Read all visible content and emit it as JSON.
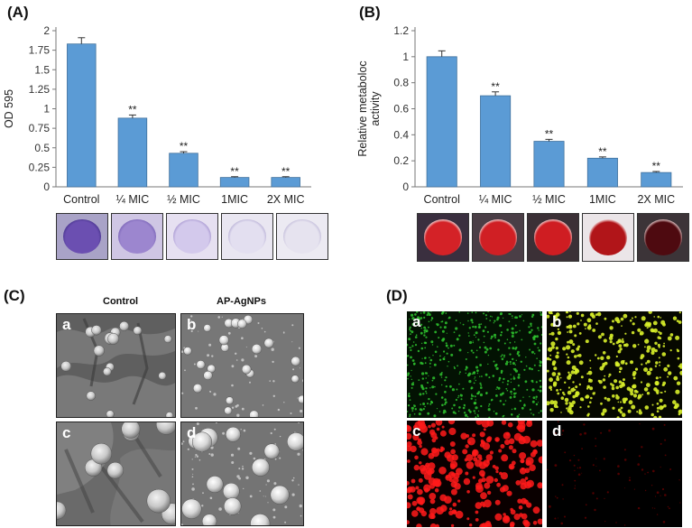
{
  "panels": {
    "A": "(A)",
    "B": "(B)",
    "C": "(C)",
    "D": "(D)"
  },
  "chart_data": [
    {
      "type": "bar",
      "panel": "A",
      "categories": [
        "Control",
        "¼ MIC",
        "½ MIC",
        "1MIC",
        "2X MIC"
      ],
      "values": [
        1.83,
        0.88,
        0.43,
        0.12,
        0.12
      ],
      "errors": [
        0.08,
        0.04,
        0.02,
        0.01,
        0.01
      ],
      "annotations": [
        "",
        "**",
        "**",
        "**",
        "**"
      ],
      "yticks": [
        "0",
        "0.25",
        "0.5",
        "0.75",
        "1",
        "1.25",
        "1.5",
        "1.75",
        "2"
      ],
      "ylabel": "OD 595",
      "xlabel": "",
      "title": "",
      "ylim": [
        0,
        2
      ],
      "bar_color": "#5b9bd5"
    },
    {
      "type": "bar",
      "panel": "B",
      "categories": [
        "Control",
        "¼ MIC",
        "½ MIC",
        "1MIC",
        "2X MIC"
      ],
      "values": [
        1.0,
        0.7,
        0.35,
        0.22,
        0.11
      ],
      "errors": [
        0.045,
        0.03,
        0.015,
        0.01,
        0.008
      ],
      "annotations": [
        "",
        "**",
        "**",
        "**",
        "**"
      ],
      "yticks": [
        "0",
        "0.2",
        "0.4",
        "0.6",
        "0.8",
        "1",
        "1.2"
      ],
      "ylabel": "Relative metaboloc activity",
      "ylabel_lines": [
        "Relative metaboloc",
        "activity"
      ],
      "xlabel": "",
      "title": "",
      "ylim": [
        0,
        1.2
      ],
      "bar_color": "#5b9bd5"
    }
  ],
  "wells_a": [
    {
      "bg": "#a9a3c7",
      "fill": "#6b4fb1",
      "rim": "#4a3690"
    },
    {
      "bg": "#cfc6e4",
      "fill": "#9c86cf",
      "rim": "#7c66b8"
    },
    {
      "bg": "#e6e0f1",
      "fill": "#d3c9ec",
      "rim": "#a898d1"
    },
    {
      "bg": "#e9e6f1",
      "fill": "#e3dff0",
      "rim": "#b9b1d6"
    },
    {
      "bg": "#eceaf2",
      "fill": "#e6e3ef",
      "rim": "#c2bcda"
    }
  ],
  "wells_b": [
    {
      "bg": "#3a2f3f",
      "fill": "#d42227",
      "rim": "#f4e3e3"
    },
    {
      "bg": "#4a3e46",
      "fill": "#d01f24",
      "rim": "#f2e1e1"
    },
    {
      "bg": "#3b3036",
      "fill": "#cf1d22",
      "rim": "#f3e0e0"
    },
    {
      "bg": "#ebe5e8",
      "fill": "#b11519",
      "rim": "#fbf2f2"
    },
    {
      "bg": "#3c3438",
      "fill": "#4e0a10",
      "rim": "#f2dada"
    }
  ],
  "sem": {
    "col_titles": [
      "Control",
      "AP-AgNPs"
    ],
    "labels": [
      "a",
      "b",
      "c",
      "d"
    ]
  },
  "fluorescence": {
    "labels": [
      "a",
      "b",
      "c",
      "d"
    ],
    "colors": [
      "#2fc42f",
      "#d8f02a",
      "#ff1a1a",
      "#5a0000"
    ]
  }
}
